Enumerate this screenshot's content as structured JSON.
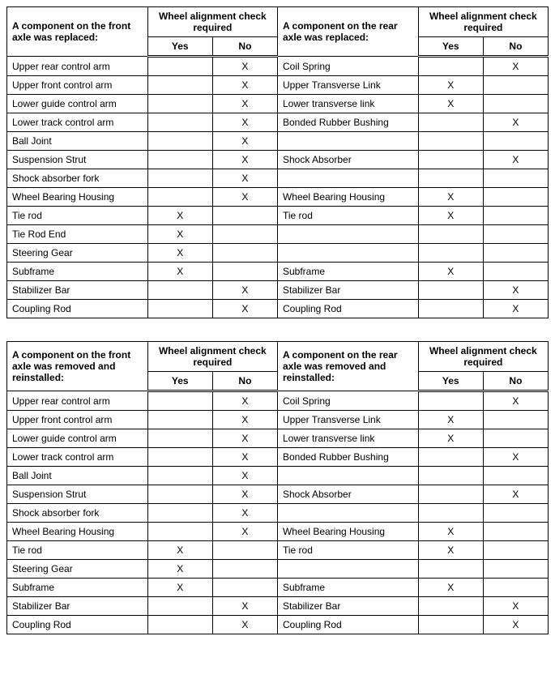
{
  "tables": [
    {
      "front_header": "A component on the front axle was replaced:",
      "rear_header": "A component on the rear axle was replaced:",
      "check_header": "Wheel alignment check required",
      "yes_label": "Yes",
      "no_label": "No",
      "rows": [
        {
          "front": "Upper rear control arm",
          "f_yes": "",
          "f_no": "X",
          "rear": "Coil Spring",
          "r_yes": "",
          "r_no": "X"
        },
        {
          "front": "Upper front control arm",
          "f_yes": "",
          "f_no": "X",
          "rear": "Upper Transverse Link",
          "r_yes": "X",
          "r_no": ""
        },
        {
          "front": "Lower guide control arm",
          "f_yes": "",
          "f_no": "X",
          "rear": "Lower transverse link",
          "r_yes": "X",
          "r_no": ""
        },
        {
          "front": "Lower track control arm",
          "f_yes": "",
          "f_no": "X",
          "rear": "Bonded Rubber Bushing",
          "r_yes": "",
          "r_no": "X"
        },
        {
          "front": "Ball Joint",
          "f_yes": "",
          "f_no": "X",
          "rear": "",
          "r_yes": "",
          "r_no": ""
        },
        {
          "front": "Suspension Strut",
          "f_yes": "",
          "f_no": "X",
          "rear": "Shock Absorber",
          "r_yes": "",
          "r_no": "X"
        },
        {
          "front": "Shock absorber fork",
          "f_yes": "",
          "f_no": "X",
          "rear": "",
          "r_yes": "",
          "r_no": ""
        },
        {
          "front": "Wheel Bearing Housing",
          "f_yes": "",
          "f_no": "X",
          "rear": "Wheel Bearing Housing",
          "r_yes": "X",
          "r_no": ""
        },
        {
          "front": "Tie rod",
          "f_yes": "X",
          "f_no": "",
          "rear": "Tie rod",
          "r_yes": "X",
          "r_no": ""
        },
        {
          "front": "Tie Rod End",
          "f_yes": "X",
          "f_no": "",
          "rear": "",
          "r_yes": "",
          "r_no": ""
        },
        {
          "front": "Steering Gear",
          "f_yes": "X",
          "f_no": "",
          "rear": "",
          "r_yes": "",
          "r_no": ""
        },
        {
          "front": "Subframe",
          "f_yes": "X",
          "f_no": "",
          "rear": "Subframe",
          "r_yes": "X",
          "r_no": ""
        },
        {
          "front": "Stabilizer Bar",
          "f_yes": "",
          "f_no": "X",
          "rear": "Stabilizer Bar",
          "r_yes": "",
          "r_no": "X"
        },
        {
          "front": "Coupling Rod",
          "f_yes": "",
          "f_no": "X",
          "rear": "Coupling Rod",
          "r_yes": "",
          "r_no": "X"
        }
      ]
    },
    {
      "front_header": "A component on the front axle was removed and reinstalled:",
      "rear_header": "A component on the rear axle was removed and reinstalled:",
      "check_header": "Wheel alignment check required",
      "yes_label": "Yes",
      "no_label": "No",
      "rows": [
        {
          "front": "Upper rear control arm",
          "f_yes": "",
          "f_no": "X",
          "rear": "Coil Spring",
          "r_yes": "",
          "r_no": "X"
        },
        {
          "front": "Upper front control arm",
          "f_yes": "",
          "f_no": "X",
          "rear": "Upper Transverse Link",
          "r_yes": "X",
          "r_no": ""
        },
        {
          "front": "Lower guide control arm",
          "f_yes": "",
          "f_no": "X",
          "rear": "Lower transverse link",
          "r_yes": "X",
          "r_no": ""
        },
        {
          "front": "Lower track control arm",
          "f_yes": "",
          "f_no": "X",
          "rear": "Bonded Rubber Bushing",
          "r_yes": "",
          "r_no": "X"
        },
        {
          "front": "Ball Joint",
          "f_yes": "",
          "f_no": "X",
          "rear": "",
          "r_yes": "",
          "r_no": ""
        },
        {
          "front": "Suspension Strut",
          "f_yes": "",
          "f_no": "X",
          "rear": "Shock Absorber",
          "r_yes": "",
          "r_no": "X"
        },
        {
          "front": "Shock absorber fork",
          "f_yes": "",
          "f_no": "X",
          "rear": "",
          "r_yes": "",
          "r_no": ""
        },
        {
          "front": "Wheel Bearing Housing",
          "f_yes": "",
          "f_no": "X",
          "rear": "Wheel Bearing Housing",
          "r_yes": "X",
          "r_no": ""
        },
        {
          "front": "Tie rod",
          "f_yes": "X",
          "f_no": "",
          "rear": "Tie rod",
          "r_yes": "X",
          "r_no": ""
        },
        {
          "front": "Steering Gear",
          "f_yes": "X",
          "f_no": "",
          "rear": "",
          "r_yes": "",
          "r_no": ""
        },
        {
          "front": "Subframe",
          "f_yes": "X",
          "f_no": "",
          "rear": "Subframe",
          "r_yes": "X",
          "r_no": ""
        },
        {
          "front": "Stabilizer Bar",
          "f_yes": "",
          "f_no": "X",
          "rear": "Stabilizer Bar",
          "r_yes": "",
          "r_no": "X"
        },
        {
          "front": "Coupling Rod",
          "f_yes": "",
          "f_no": "X",
          "rear": "Coupling Rod",
          "r_yes": "",
          "r_no": "X"
        }
      ]
    }
  ]
}
